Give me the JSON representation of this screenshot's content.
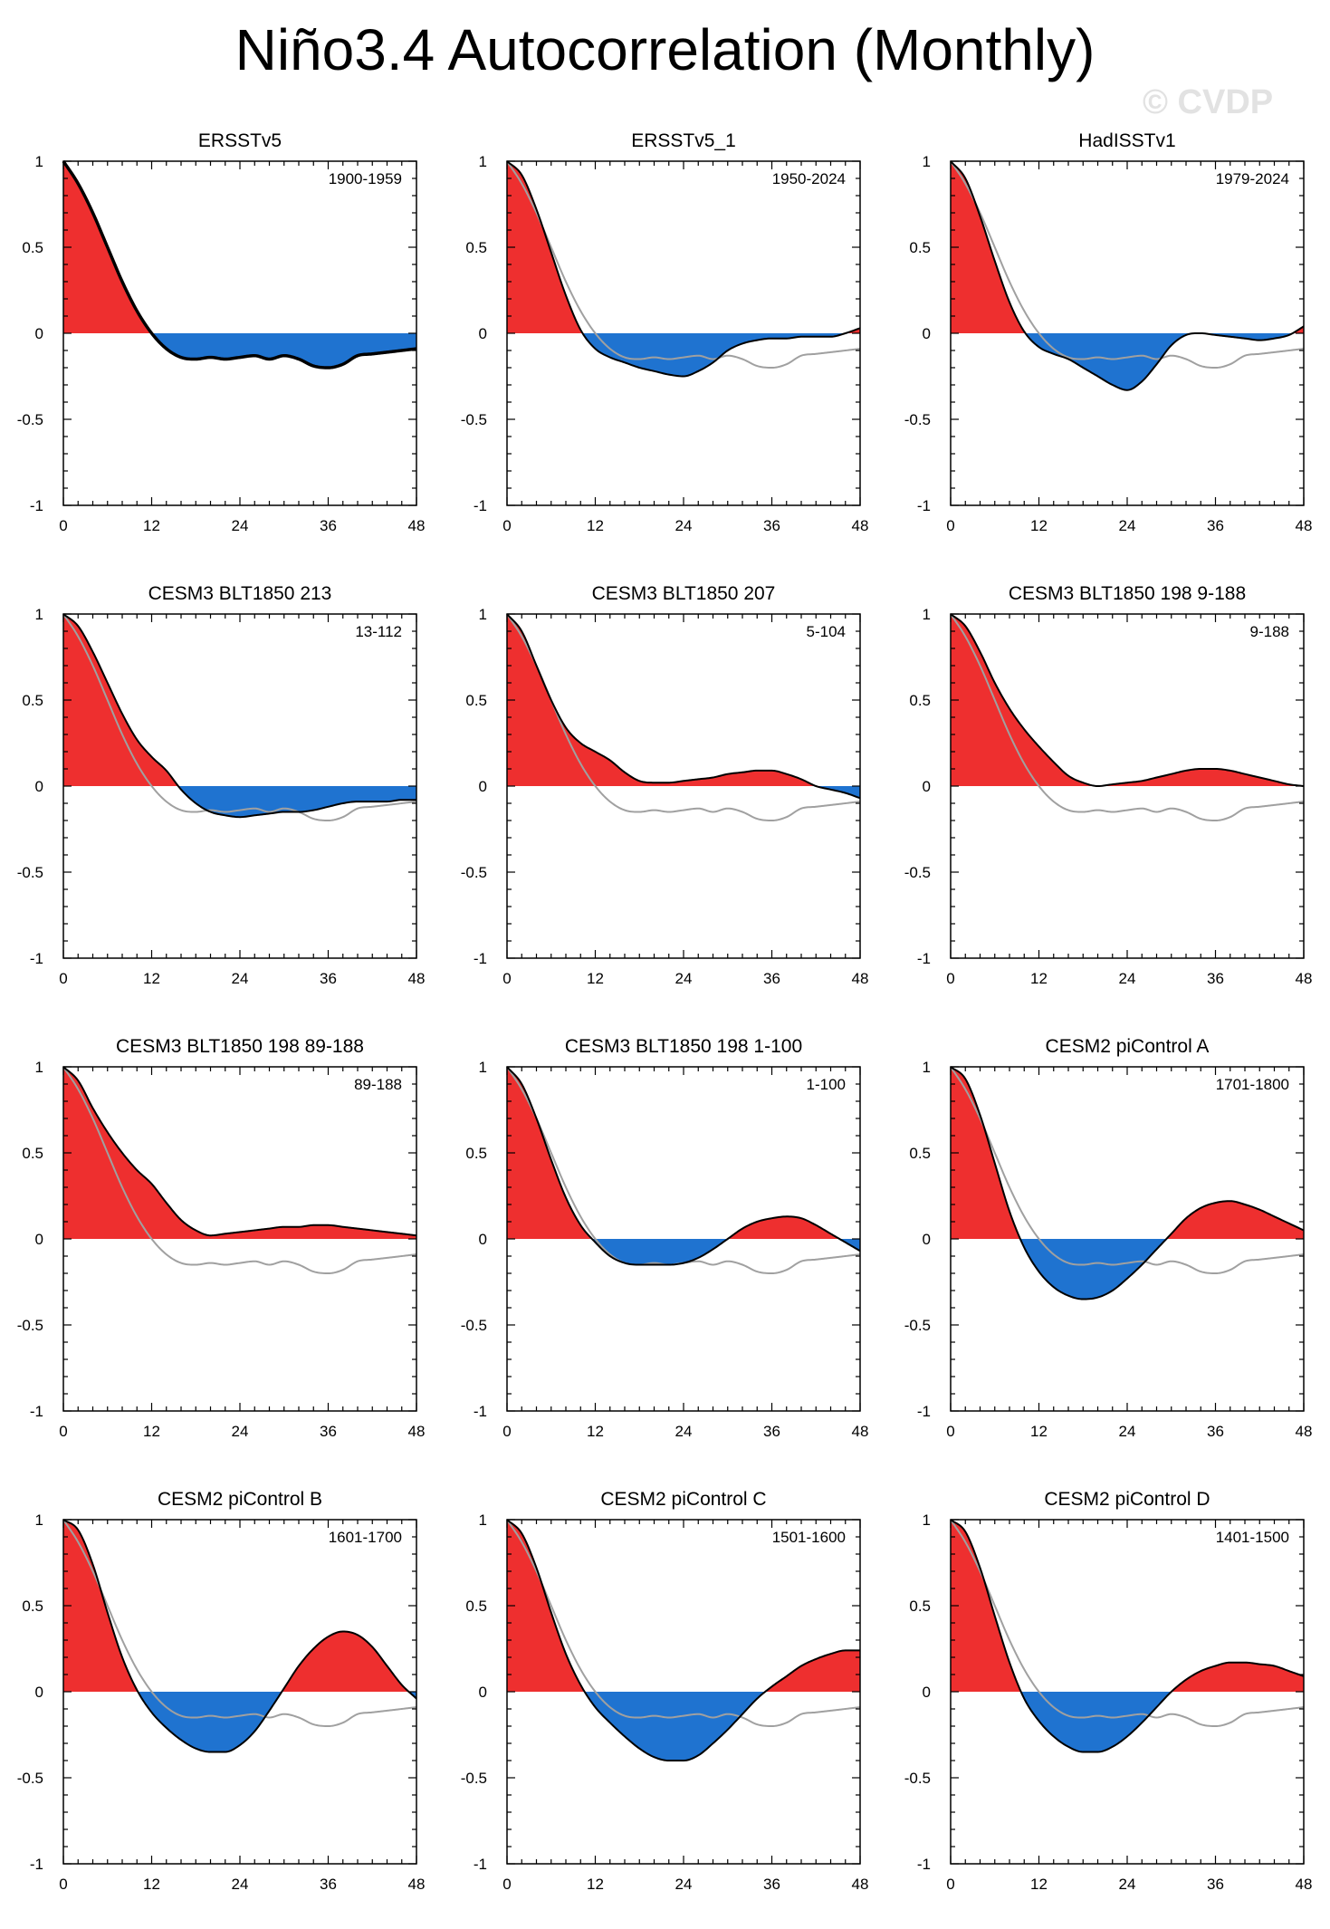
{
  "title": "Niño3.4 Autocorrelation (Monthly)",
  "watermark": "© CVDP",
  "colors": {
    "positive": "#ee2f2f",
    "negative": "#1f73d0",
    "reference": "#a0a0a0",
    "line": "#000000"
  },
  "chart_data": {
    "type": "area",
    "xlabel": "",
    "ylabel": "",
    "xlim": [
      0,
      48
    ],
    "ylim": [
      -1,
      1
    ],
    "xticks": [
      0,
      12,
      24,
      36,
      48
    ],
    "yticks": [
      1,
      0.5,
      0,
      -0.5,
      -1
    ],
    "ytick_labels": [
      "1",
      "0.5",
      "0",
      "-0.5",
      "-1"
    ],
    "reference": {
      "name": "ERSSTv5",
      "x": [
        0,
        2,
        4,
        6,
        8,
        10,
        12,
        14,
        16,
        18,
        20,
        22,
        24,
        26,
        28,
        30,
        32,
        34,
        36,
        38,
        40,
        42,
        44,
        46,
        48
      ],
      "y": [
        1,
        0.87,
        0.7,
        0.5,
        0.3,
        0.13,
        0.0,
        -0.09,
        -0.14,
        -0.15,
        -0.14,
        -0.15,
        -0.14,
        -0.13,
        -0.15,
        -0.13,
        -0.15,
        -0.19,
        -0.2,
        -0.18,
        -0.13,
        -0.12,
        -0.11,
        -0.1,
        -0.09
      ]
    },
    "panels": [
      {
        "title": "ERSSTv5",
        "period": "1900-1959",
        "is_reference": true,
        "x": [
          0,
          2,
          4,
          6,
          8,
          10,
          12,
          14,
          16,
          18,
          20,
          22,
          24,
          26,
          28,
          30,
          32,
          34,
          36,
          38,
          40,
          42,
          44,
          46,
          48
        ],
        "y": [
          1,
          0.87,
          0.7,
          0.5,
          0.3,
          0.13,
          0.0,
          -0.09,
          -0.14,
          -0.15,
          -0.14,
          -0.15,
          -0.14,
          -0.13,
          -0.15,
          -0.13,
          -0.15,
          -0.19,
          -0.2,
          -0.18,
          -0.13,
          -0.12,
          -0.11,
          -0.1,
          -0.09
        ]
      },
      {
        "title": "ERSSTv5_1",
        "period": "1950-2024",
        "x": [
          0,
          2,
          4,
          6,
          8,
          10,
          12,
          14,
          16,
          18,
          20,
          22,
          24,
          26,
          28,
          30,
          32,
          34,
          36,
          38,
          40,
          42,
          44,
          46,
          48
        ],
        "y": [
          1,
          0.92,
          0.72,
          0.47,
          0.22,
          0.02,
          -0.09,
          -0.14,
          -0.17,
          -0.2,
          -0.22,
          -0.24,
          -0.25,
          -0.22,
          -0.17,
          -0.1,
          -0.06,
          -0.04,
          -0.03,
          -0.03,
          -0.02,
          -0.02,
          -0.02,
          0.0,
          0.03
        ]
      },
      {
        "title": "HadISSTv1",
        "period": "1979-2024",
        "x": [
          0,
          2,
          4,
          6,
          8,
          10,
          12,
          14,
          16,
          18,
          20,
          22,
          24,
          26,
          28,
          30,
          32,
          34,
          36,
          38,
          40,
          42,
          44,
          46,
          48
        ],
        "y": [
          1,
          0.9,
          0.68,
          0.42,
          0.18,
          0.01,
          -0.08,
          -0.12,
          -0.15,
          -0.2,
          -0.25,
          -0.3,
          -0.33,
          -0.28,
          -0.18,
          -0.07,
          -0.01,
          0.0,
          -0.01,
          -0.02,
          -0.03,
          -0.04,
          -0.03,
          -0.01,
          0.04
        ]
      },
      {
        "title": "CESM3 BLT1850 213",
        "period": "13-112",
        "x": [
          0,
          2,
          4,
          6,
          8,
          10,
          12,
          14,
          16,
          18,
          20,
          22,
          24,
          26,
          28,
          30,
          32,
          34,
          36,
          38,
          40,
          42,
          44,
          46,
          48
        ],
        "y": [
          1,
          0.93,
          0.78,
          0.6,
          0.42,
          0.27,
          0.17,
          0.09,
          -0.02,
          -0.1,
          -0.15,
          -0.17,
          -0.18,
          -0.17,
          -0.16,
          -0.15,
          -0.15,
          -0.14,
          -0.12,
          -0.1,
          -0.09,
          -0.09,
          -0.09,
          -0.08,
          -0.08
        ]
      },
      {
        "title": "CESM3 BLT1850 207",
        "period": "5-104",
        "x": [
          0,
          2,
          4,
          6,
          8,
          10,
          12,
          14,
          16,
          18,
          20,
          22,
          24,
          26,
          28,
          30,
          32,
          34,
          36,
          38,
          40,
          42,
          44,
          46,
          48
        ],
        "y": [
          1,
          0.9,
          0.7,
          0.5,
          0.34,
          0.25,
          0.2,
          0.15,
          0.08,
          0.03,
          0.02,
          0.02,
          0.03,
          0.04,
          0.05,
          0.07,
          0.08,
          0.09,
          0.09,
          0.07,
          0.04,
          0.0,
          -0.02,
          -0.04,
          -0.07
        ]
      },
      {
        "title": "CESM3 BLT1850 198 9-188",
        "period": "9-188",
        "x": [
          0,
          2,
          4,
          6,
          8,
          10,
          12,
          14,
          16,
          18,
          20,
          22,
          24,
          26,
          28,
          30,
          32,
          34,
          36,
          38,
          40,
          42,
          44,
          46,
          48
        ],
        "y": [
          1,
          0.93,
          0.78,
          0.6,
          0.45,
          0.33,
          0.23,
          0.14,
          0.06,
          0.02,
          0.0,
          0.01,
          0.02,
          0.03,
          0.05,
          0.07,
          0.09,
          0.1,
          0.1,
          0.09,
          0.07,
          0.05,
          0.03,
          0.01,
          0.0
        ]
      },
      {
        "title": "CESM3 BLT1850 198 89-188",
        "period": "89-188",
        "x": [
          0,
          2,
          4,
          6,
          8,
          10,
          12,
          14,
          16,
          18,
          20,
          22,
          24,
          26,
          28,
          30,
          32,
          34,
          36,
          38,
          40,
          42,
          44,
          46,
          48
        ],
        "y": [
          1,
          0.92,
          0.76,
          0.62,
          0.5,
          0.4,
          0.32,
          0.21,
          0.11,
          0.05,
          0.02,
          0.03,
          0.04,
          0.05,
          0.06,
          0.07,
          0.07,
          0.08,
          0.08,
          0.07,
          0.06,
          0.05,
          0.04,
          0.03,
          0.02
        ]
      },
      {
        "title": "CESM3 BLT1850 198 1-100",
        "period": "1-100",
        "x": [
          0,
          2,
          4,
          6,
          8,
          10,
          12,
          14,
          16,
          18,
          20,
          22,
          24,
          26,
          28,
          30,
          32,
          34,
          36,
          38,
          40,
          42,
          44,
          46,
          48
        ],
        "y": [
          1,
          0.9,
          0.7,
          0.46,
          0.24,
          0.08,
          -0.02,
          -0.1,
          -0.14,
          -0.15,
          -0.15,
          -0.15,
          -0.14,
          -0.11,
          -0.06,
          0.0,
          0.06,
          0.1,
          0.12,
          0.13,
          0.12,
          0.08,
          0.03,
          -0.02,
          -0.07
        ]
      },
      {
        "title": "CESM2 piControl A",
        "period": "1701-1800",
        "x": [
          0,
          2,
          4,
          6,
          8,
          10,
          12,
          14,
          16,
          18,
          20,
          22,
          24,
          26,
          28,
          30,
          32,
          34,
          36,
          38,
          40,
          42,
          44,
          46,
          48
        ],
        "y": [
          1,
          0.93,
          0.72,
          0.44,
          0.16,
          -0.05,
          -0.19,
          -0.28,
          -0.33,
          -0.35,
          -0.34,
          -0.3,
          -0.23,
          -0.15,
          -0.06,
          0.03,
          0.12,
          0.18,
          0.21,
          0.22,
          0.2,
          0.17,
          0.13,
          0.09,
          0.05
        ]
      },
      {
        "title": "CESM2 piControl B",
        "period": "1601-1700",
        "x": [
          0,
          2,
          4,
          6,
          8,
          10,
          12,
          14,
          16,
          18,
          20,
          22,
          24,
          26,
          28,
          30,
          32,
          34,
          36,
          38,
          40,
          42,
          44,
          46,
          48
        ],
        "y": [
          1,
          0.94,
          0.74,
          0.46,
          0.2,
          0.01,
          -0.12,
          -0.21,
          -0.28,
          -0.33,
          -0.35,
          -0.35,
          -0.31,
          -0.23,
          -0.11,
          0.02,
          0.15,
          0.25,
          0.32,
          0.35,
          0.33,
          0.26,
          0.15,
          0.04,
          -0.04
        ]
      },
      {
        "title": "CESM2 piControl C",
        "period": "1501-1600",
        "x": [
          0,
          2,
          4,
          6,
          8,
          10,
          12,
          14,
          16,
          18,
          20,
          22,
          24,
          26,
          28,
          30,
          32,
          34,
          36,
          38,
          40,
          42,
          44,
          46,
          48
        ],
        "y": [
          1,
          0.92,
          0.72,
          0.46,
          0.22,
          0.04,
          -0.09,
          -0.18,
          -0.26,
          -0.33,
          -0.38,
          -0.4,
          -0.4,
          -0.37,
          -0.3,
          -0.22,
          -0.13,
          -0.04,
          0.03,
          0.09,
          0.15,
          0.19,
          0.22,
          0.24,
          0.24
        ]
      },
      {
        "title": "CESM2 piControl D",
        "period": "1401-1500",
        "x": [
          0,
          2,
          4,
          6,
          8,
          10,
          12,
          14,
          16,
          18,
          20,
          22,
          24,
          26,
          28,
          30,
          32,
          34,
          36,
          38,
          40,
          42,
          44,
          46,
          48
        ],
        "y": [
          1,
          0.93,
          0.72,
          0.44,
          0.17,
          -0.04,
          -0.17,
          -0.26,
          -0.32,
          -0.35,
          -0.35,
          -0.32,
          -0.26,
          -0.18,
          -0.09,
          0.0,
          0.07,
          0.12,
          0.15,
          0.17,
          0.17,
          0.16,
          0.15,
          0.12,
          0.09
        ]
      }
    ]
  }
}
